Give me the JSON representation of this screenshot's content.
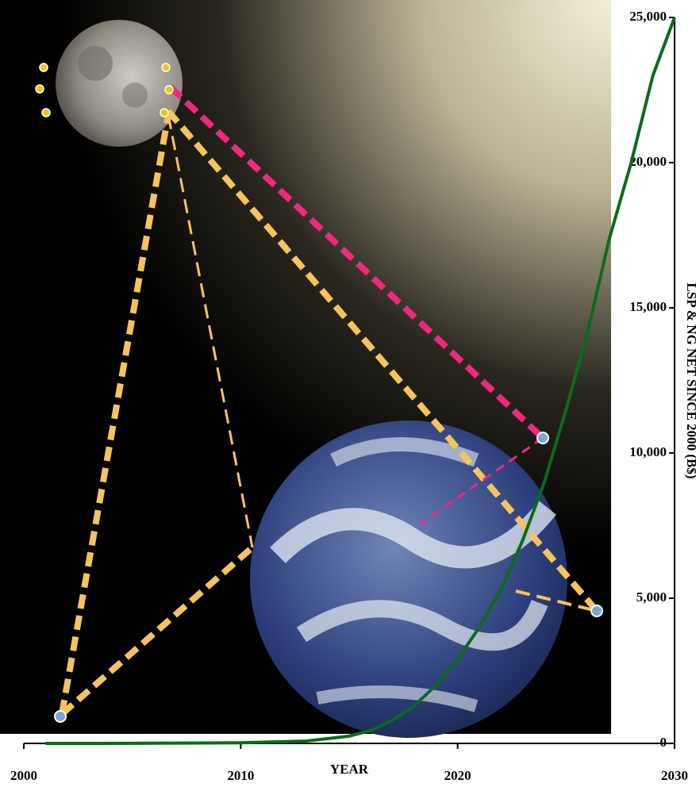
{
  "chart_data": {
    "type": "line",
    "x_label": "YEAR",
    "y_label": "LSP & NG NET SINCE 2000 (B$)",
    "x": [
      2001,
      2005,
      2010,
      2013,
      2015,
      2016,
      2017,
      2018,
      2019,
      2020,
      2021,
      2022,
      2023,
      2024,
      2025,
      2026,
      2027,
      2028,
      2029,
      2030
    ],
    "series": [
      {
        "color": "#0b6b1a",
        "values": [
          0,
          2,
          20,
          80,
          250,
          450,
          800,
          1300,
          2000,
          2900,
          4000,
          5300,
          7000,
          9000,
          11500,
          14200,
          17400,
          20000,
          23000,
          25000
        ]
      }
    ],
    "xlim": [
      2000,
      2030
    ],
    "xticks": [
      2000,
      2010,
      2020,
      2030
    ],
    "ylim": [
      0,
      25000
    ],
    "yticks": [
      0,
      {
        "value": 5000,
        "label": "5,000"
      },
      {
        "value": 10000,
        "label": "10,000"
      },
      {
        "value": 15000,
        "label": "15,000"
      },
      {
        "value": 20000,
        "label": "20,000"
      },
      {
        "value": 25000,
        "label": "25,000"
      }
    ]
  }
}
